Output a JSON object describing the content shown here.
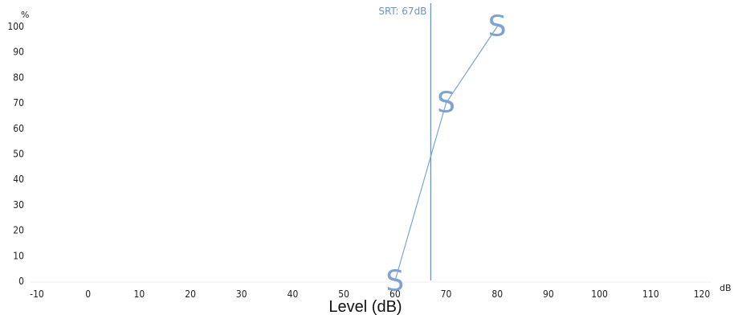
{
  "chart_data": {
    "type": "line",
    "xlabel": "Level (dB)",
    "x_unit": "dB",
    "y_unit": "%",
    "xlim": [
      -10,
      120
    ],
    "ylim": [
      0,
      100
    ],
    "x_ticks": [
      -10,
      0,
      10,
      20,
      30,
      40,
      50,
      60,
      70,
      80,
      90,
      100,
      110,
      120
    ],
    "y_ticks": [
      0,
      10,
      20,
      30,
      40,
      50,
      60,
      70,
      80,
      90,
      100
    ],
    "grid": false,
    "series": [
      {
        "marker": "S",
        "color": "#7fa2d4",
        "points": [
          {
            "x": 60,
            "y": 0
          },
          {
            "x": 70,
            "y": 70
          },
          {
            "x": 80,
            "y": 100
          }
        ]
      }
    ],
    "srt": {
      "x": 67,
      "label": "SRT: 67dB",
      "color": "#6d93c4"
    }
  }
}
